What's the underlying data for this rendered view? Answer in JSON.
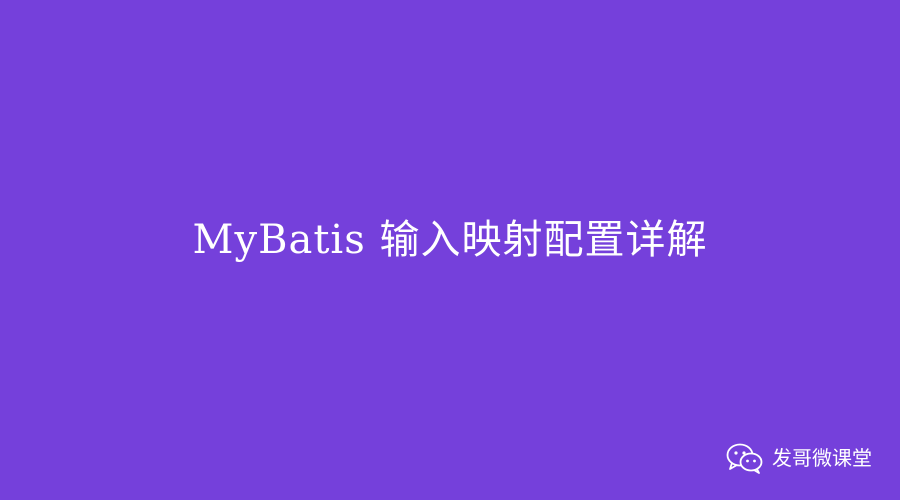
{
  "title": "MyBatis 输入映射配置详解",
  "watermark": {
    "icon": "wechat-icon",
    "label": "发哥微课堂"
  },
  "colors": {
    "background": "#7540db",
    "text": "#ffffff"
  }
}
